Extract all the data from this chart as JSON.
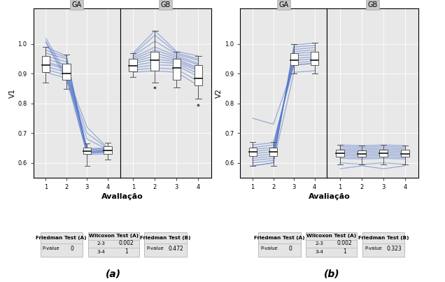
{
  "chart_a": {
    "ylabel": "V1",
    "xlabel": "Avallação",
    "ylim": [
      0.55,
      1.12
    ],
    "yticks": [
      0.6,
      0.7,
      0.8,
      0.9,
      1.0
    ],
    "ytick_labels": [
      "0.6",
      "0.7",
      "0.8",
      "0.9",
      "1.0"
    ],
    "GA_boxes": [
      {
        "x": 1,
        "q1": 0.905,
        "med": 0.93,
        "q3": 0.96,
        "whislo": 0.87,
        "whishi": 0.99
      },
      {
        "x": 2,
        "q1": 0.88,
        "med": 0.9,
        "q3": 0.935,
        "whislo": 0.85,
        "whishi": 0.965
      },
      {
        "x": 3,
        "q1": 0.63,
        "med": 0.64,
        "q3": 0.65,
        "whislo": 0.59,
        "whishi": 0.665
      },
      {
        "x": 4,
        "q1": 0.63,
        "med": 0.642,
        "q3": 0.655,
        "whislo": 0.61,
        "whishi": 0.668
      }
    ],
    "GB_boxes": [
      {
        "x": 1,
        "q1": 0.908,
        "med": 0.928,
        "q3": 0.95,
        "whislo": 0.89,
        "whishi": 0.97
      },
      {
        "x": 2,
        "q1": 0.91,
        "med": 0.945,
        "q3": 0.975,
        "whislo": 0.87,
        "whishi": 1.045,
        "fliers": [
          0.855
        ]
      },
      {
        "x": 3,
        "q1": 0.88,
        "med": 0.92,
        "q3": 0.95,
        "whislo": 0.855,
        "whishi": 0.975
      },
      {
        "x": 4,
        "q1": 0.86,
        "med": 0.885,
        "q3": 0.93,
        "whislo": 0.815,
        "whishi": 0.96,
        "fliers": [
          0.795
        ]
      }
    ],
    "GA_lines": [
      [
        0.99,
        0.96,
        0.638,
        0.64
      ],
      [
        0.98,
        0.955,
        0.635,
        0.642
      ],
      [
        0.97,
        0.95,
        0.632,
        0.638
      ],
      [
        0.96,
        0.94,
        0.643,
        0.645
      ],
      [
        0.95,
        0.93,
        0.648,
        0.65
      ],
      [
        0.94,
        0.92,
        0.645,
        0.648
      ],
      [
        0.935,
        0.915,
        0.641,
        0.643
      ],
      [
        0.925,
        0.905,
        0.636,
        0.638
      ],
      [
        0.915,
        0.895,
        0.632,
        0.635
      ],
      [
        0.905,
        0.885,
        0.628,
        0.63
      ],
      [
        1.02,
        0.9,
        0.72,
        0.65
      ],
      [
        1.01,
        0.89,
        0.7,
        0.648
      ],
      [
        1.005,
        0.88,
        0.68,
        0.645
      ]
    ],
    "GB_lines": [
      [
        0.97,
        1.045,
        0.975,
        0.96
      ],
      [
        0.965,
        1.03,
        0.97,
        0.95
      ],
      [
        0.96,
        1.01,
        0.965,
        0.945
      ],
      [
        0.955,
        0.99,
        0.96,
        0.935
      ],
      [
        0.95,
        0.98,
        0.955,
        0.93
      ],
      [
        0.945,
        0.97,
        0.95,
        0.92
      ],
      [
        0.94,
        0.96,
        0.945,
        0.915
      ],
      [
        0.935,
        0.95,
        0.94,
        0.91
      ],
      [
        0.928,
        0.94,
        0.935,
        0.9
      ],
      [
        0.92,
        0.93,
        0.928,
        0.89
      ],
      [
        0.912,
        0.92,
        0.915,
        0.875
      ],
      [
        0.905,
        0.91,
        0.905,
        0.86
      ]
    ]
  },
  "chart_b": {
    "ylabel": "V2",
    "xlabel": "Avaliação",
    "ylim": [
      0.55,
      1.12
    ],
    "yticks": [
      0.6,
      0.7,
      0.8,
      0.9,
      1.0
    ],
    "ytick_labels": [
      "0.6",
      "0.7",
      "0.8",
      "0.9",
      "1.0"
    ],
    "GA_boxes": [
      {
        "x": 1,
        "q1": 0.622,
        "med": 0.636,
        "q3": 0.65,
        "whislo": 0.59,
        "whishi": 0.67
      },
      {
        "x": 2,
        "q1": 0.622,
        "med": 0.636,
        "q3": 0.65,
        "whislo": 0.59,
        "whishi": 0.67
      },
      {
        "x": 3,
        "q1": 0.93,
        "med": 0.945,
        "q3": 0.97,
        "whislo": 0.9,
        "whishi": 1.0
      },
      {
        "x": 4,
        "q1": 0.93,
        "med": 0.945,
        "q3": 0.975,
        "whislo": 0.9,
        "whishi": 1.005
      }
    ],
    "GB_boxes": [
      {
        "x": 1,
        "q1": 0.62,
        "med": 0.632,
        "q3": 0.645,
        "whislo": 0.595,
        "whishi": 0.66
      },
      {
        "x": 2,
        "q1": 0.62,
        "med": 0.63,
        "q3": 0.642,
        "whislo": 0.595,
        "whishi": 0.658
      },
      {
        "x": 3,
        "q1": 0.62,
        "med": 0.632,
        "q3": 0.645,
        "whislo": 0.595,
        "whishi": 0.66
      },
      {
        "x": 4,
        "q1": 0.62,
        "med": 0.63,
        "q3": 0.643,
        "whislo": 0.595,
        "whishi": 0.658
      }
    ],
    "GA_lines": [
      [
        0.59,
        0.6,
        0.997,
        1.003
      ],
      [
        0.6,
        0.608,
        0.99,
        0.995
      ],
      [
        0.608,
        0.615,
        0.982,
        0.988
      ],
      [
        0.615,
        0.622,
        0.975,
        0.98
      ],
      [
        0.622,
        0.63,
        0.968,
        0.973
      ],
      [
        0.63,
        0.638,
        0.96,
        0.965
      ],
      [
        0.638,
        0.645,
        0.952,
        0.957
      ],
      [
        0.645,
        0.652,
        0.945,
        0.95
      ],
      [
        0.652,
        0.66,
        0.937,
        0.942
      ],
      [
        0.66,
        0.668,
        0.93,
        0.935
      ],
      [
        0.75,
        0.73,
        0.93,
        0.935
      ],
      [
        0.59,
        0.6,
        0.905,
        0.91
      ]
    ],
    "GB_lines": [
      [
        0.66,
        0.658,
        0.66,
        0.658
      ],
      [
        0.655,
        0.653,
        0.655,
        0.653
      ],
      [
        0.65,
        0.648,
        0.65,
        0.648
      ],
      [
        0.645,
        0.643,
        0.645,
        0.643
      ],
      [
        0.64,
        0.638,
        0.64,
        0.638
      ],
      [
        0.635,
        0.633,
        0.635,
        0.633
      ],
      [
        0.63,
        0.628,
        0.63,
        0.628
      ],
      [
        0.625,
        0.623,
        0.625,
        0.623
      ],
      [
        0.62,
        0.618,
        0.62,
        0.618
      ],
      [
        0.615,
        0.613,
        0.615,
        0.613
      ],
      [
        0.58,
        0.59,
        0.58,
        0.59
      ],
      [
        0.6,
        0.595,
        0.6,
        0.595
      ]
    ]
  },
  "stats_a": {
    "friedman_A_pvalue": "0",
    "wilcoxon_A_23": "0.002",
    "wilcoxon_A_34": "1",
    "friedman_B_pvalue": "0.472"
  },
  "stats_b": {
    "friedman_A_pvalue": "0",
    "wilcoxon_A_23": "0.002",
    "wilcoxon_A_34": "1",
    "friedman_B_pvalue": "0.323"
  },
  "line_color": "#5577cc",
  "line_alpha": 0.55,
  "line_width": 0.9,
  "box_facecolor": "#ffffff",
  "box_edgecolor": "#555555",
  "median_color": "#222222",
  "bg_color": "#e8e8e8",
  "facet_bg": "#c8c8c8",
  "grid_color": "#ffffff",
  "caption_fontsize": 10,
  "label_fontsize": 7.5,
  "tick_fontsize": 6,
  "facet_fontsize": 7
}
